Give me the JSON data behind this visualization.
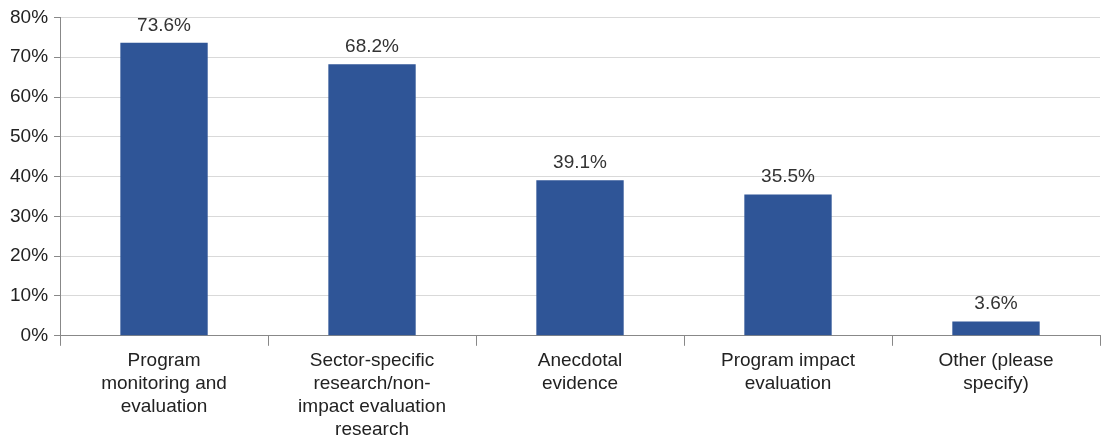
{
  "chart_data": {
    "type": "bar",
    "categories": [
      "Program monitoring and evaluation",
      "Sector-specific research/non-impact evaluation research",
      "Anecdotal evidence",
      "Program impact evaluation",
      "Other (please specify)"
    ],
    "values": [
      73.6,
      68.2,
      39.1,
      35.5,
      3.6
    ],
    "value_labels": [
      "73.6%",
      "68.2%",
      "39.1%",
      "35.5%",
      "3.6%"
    ],
    "color": "#2f5597",
    "ylim": [
      0,
      80
    ],
    "yticks": [
      {
        "value": 0,
        "label": "0%"
      },
      {
        "value": 10,
        "label": "10%"
      },
      {
        "value": 20,
        "label": "20%"
      },
      {
        "value": 30,
        "label": "30%"
      },
      {
        "value": 40,
        "label": "40%"
      },
      {
        "value": 50,
        "label": "50%"
      },
      {
        "value": 60,
        "label": "60%"
      },
      {
        "value": 70,
        "label": "70%"
      },
      {
        "value": 80,
        "label": "80%"
      }
    ],
    "grid": "y",
    "legend": false
  }
}
